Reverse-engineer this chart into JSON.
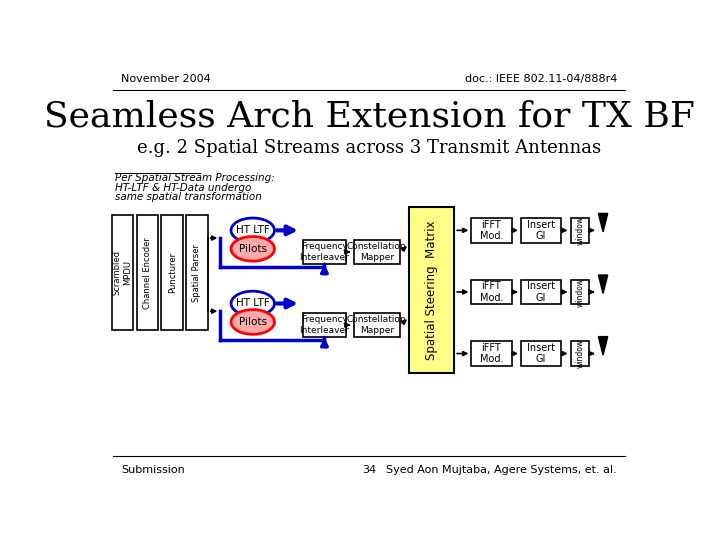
{
  "title": "Seamless Arch Extension for TX BF",
  "subtitle": "e.g. 2 Spatial Streams across 3 Transmit Antennas",
  "header_left": "November 2004",
  "header_right": "doc.: IEEE 802.11-04/888r4",
  "footer_left": "Submission",
  "footer_center": "34",
  "footer_right": "Syed Aon Mujtaba, Agere Systems, et. al.",
  "note_line1": "Per Spatial Stream Processing:",
  "note_line2": "HT-LTF & HT-Data undergo",
  "note_line3": "same spatial transformation",
  "bg_color": "#ffffff",
  "box_fill_yellow": "#ffff99",
  "box_fill_white": "#ffffff",
  "arrow_blue": "#0000cc",
  "arrow_red": "#ff0000",
  "box_stroke": "#000000",
  "title_color": "#000000",
  "matrix_fill": "#ffff88",
  "htltf_fill": "#ffffff",
  "pilots_fill": "#ffaaaa"
}
